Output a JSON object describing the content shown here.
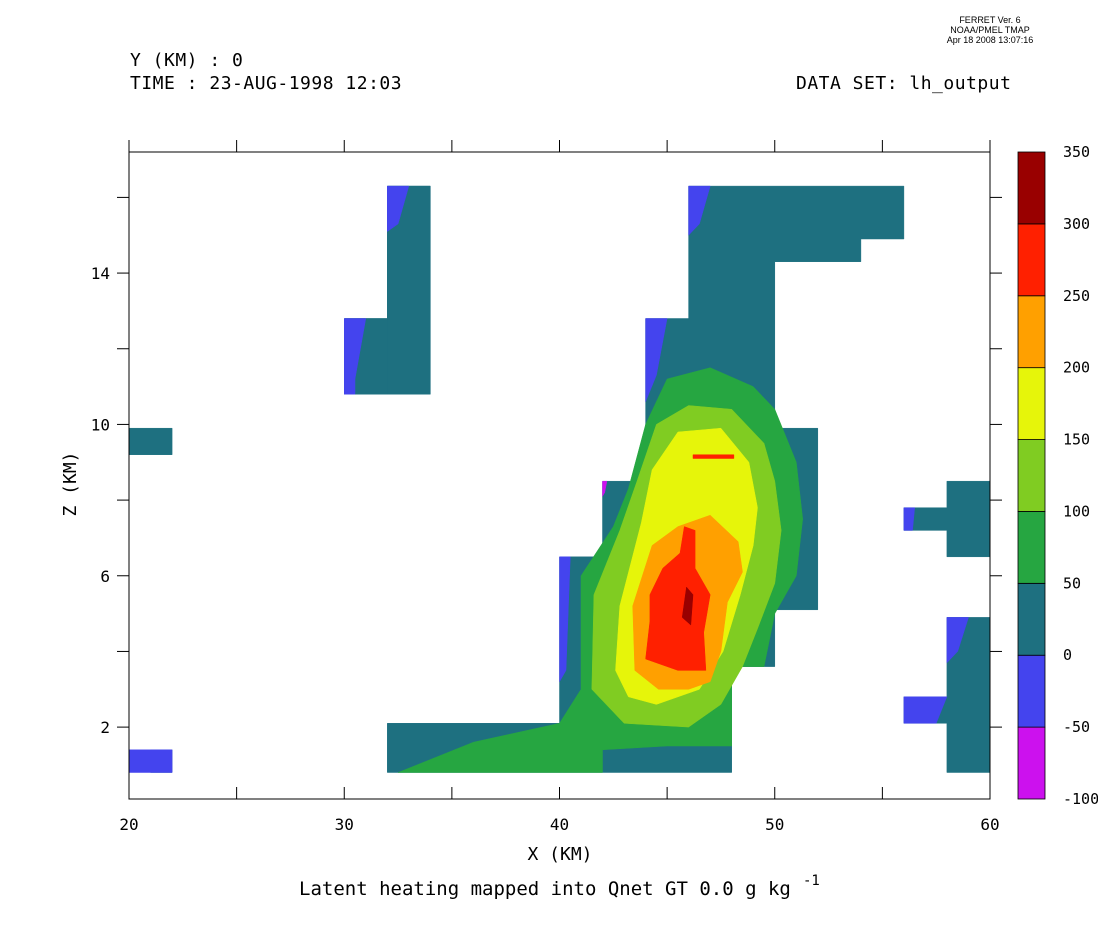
{
  "header": {
    "y_line": "Y (KM) : 0",
    "time_line": "TIME : 23-AUG-1998 12:03",
    "dataset_line": "DATA SET: lh_output"
  },
  "stamp": {
    "line1": "FERRET Ver. 6",
    "line2": "NOAA/PMEL TMAP",
    "line3": "Apr 18 2008 13:07:16"
  },
  "chart_data": {
    "type": "heatmap",
    "title": "Latent heating mapped into Qnet GT 0.0 g kg",
    "title_superscript": "-1",
    "xlabel": "X (KM)",
    "ylabel": "Z (KM)",
    "xlim": [
      20,
      60
    ],
    "ylim": [
      0.1,
      17.2
    ],
    "x_tick_labels": [
      "20",
      "30",
      "40",
      "50",
      "60"
    ],
    "y_tick_labels": [
      "2",
      "6",
      "10",
      "14"
    ],
    "colorbar": {
      "levels": [
        -100,
        -50,
        0,
        50,
        100,
        150,
        200,
        250,
        300,
        350
      ],
      "labels": [
        "-100",
        "-50",
        "0",
        "50",
        "100",
        "150",
        "200",
        "250",
        "300",
        "350"
      ],
      "colors": [
        "#cc11ee",
        "#4444ee",
        "#1e7080",
        "#26a641",
        "#80cc22",
        "#e6f50a",
        "#ffa000",
        "#ff2000",
        "#990000"
      ]
    },
    "filled_regions": [
      {
        "level_index": 2,
        "polygons": [
          [
            [
              21,
              1.4
            ],
            [
              22,
              1.4
            ],
            [
              22,
              0.8
            ],
            [
              21,
              0.8
            ]
          ],
          [
            [
              20,
              9.9
            ],
            [
              22,
              9.9
            ],
            [
              22,
              9.2
            ],
            [
              20,
              9.2
            ]
          ],
          [
            [
              32,
              16.3
            ],
            [
              34,
              16.3
            ],
            [
              34,
              10.8
            ],
            [
              32,
              10.8
            ],
            [
              32,
              12.8
            ],
            [
              30,
              12.8
            ],
            [
              30,
              10.8
            ],
            [
              32,
              10.8
            ]
          ],
          [
            [
              30,
              12.8
            ],
            [
              32,
              12.8
            ],
            [
              32,
              10.8
            ],
            [
              30,
              10.8
            ]
          ],
          [
            [
              32,
              16.3
            ],
            [
              34,
              16.3
            ],
            [
              34,
              10.8
            ],
            [
              32,
              10.8
            ]
          ],
          [
            [
              32,
              2.1
            ],
            [
              40,
              2.1
            ],
            [
              40,
              6.5
            ],
            [
              42,
              6.5
            ],
            [
              42,
              8.5
            ],
            [
              44,
              8.5
            ],
            [
              44,
              12.8
            ],
            [
              46,
              12.8
            ],
            [
              46,
              16.3
            ],
            [
              56,
              16.3
            ],
            [
              56,
              14.9
            ],
            [
              54,
              14.9
            ],
            [
              54,
              14.3
            ],
            [
              50,
              14.3
            ],
            [
              50,
              9.9
            ],
            [
              52,
              9.9
            ],
            [
              52,
              5.1
            ],
            [
              50,
              5.1
            ],
            [
              50,
              3.6
            ],
            [
              48,
              3.6
            ],
            [
              48,
              0.8
            ],
            [
              32,
              0.8
            ]
          ],
          [
            [
              56,
              7.8
            ],
            [
              58,
              7.8
            ],
            [
              58,
              8.5
            ],
            [
              60,
              8.5
            ],
            [
              60,
              6.5
            ],
            [
              58,
              6.5
            ],
            [
              58,
              7.2
            ],
            [
              56,
              7.2
            ]
          ],
          [
            [
              56,
              2.8
            ],
            [
              58,
              2.8
            ],
            [
              58,
              4.9
            ],
            [
              60,
              4.9
            ],
            [
              60,
              0.8
            ],
            [
              58,
              0.8
            ],
            [
              58,
              2.1
            ],
            [
              56,
              2.1
            ]
          ]
        ]
      },
      {
        "level_index": 1,
        "polygons": [
          [
            [
              20,
              1.4
            ],
            [
              22,
              1.4
            ],
            [
              22,
              0.8
            ],
            [
              20,
              0.8
            ]
          ],
          [
            [
              32,
              16.3
            ],
            [
              33,
              16.3
            ],
            [
              32.5,
              15.3
            ],
            [
              32,
              15.1
            ]
          ],
          [
            [
              30,
              12.8
            ],
            [
              31,
              12.8
            ],
            [
              30.5,
              11.2
            ],
            [
              30.5,
              10.8
            ],
            [
              30,
              10.8
            ]
          ],
          [
            [
              44,
              12.8
            ],
            [
              45,
              12.8
            ],
            [
              44.5,
              11.3
            ],
            [
              44,
              10.6
            ]
          ],
          [
            [
              46,
              16.3
            ],
            [
              47,
              16.3
            ],
            [
              46.5,
              15.3
            ],
            [
              46,
              15
            ]
          ],
          [
            [
              40,
              6.5
            ],
            [
              40.5,
              6.5
            ],
            [
              40.3,
              3.5
            ],
            [
              40,
              3.2
            ]
          ],
          [
            [
              56,
              7.8
            ],
            [
              56.5,
              7.8
            ],
            [
              56.4,
              7.2
            ],
            [
              56,
              7.2
            ]
          ],
          [
            [
              58,
              4.9
            ],
            [
              59,
              4.9
            ],
            [
              58.5,
              4
            ],
            [
              58,
              3.7
            ]
          ],
          [
            [
              56,
              2.8
            ],
            [
              58,
              2.8
            ],
            [
              57.5,
              2.1
            ],
            [
              56,
              2.1
            ]
          ]
        ]
      },
      {
        "level_index": 0,
        "polygons": [
          [
            [
              42,
              8.5
            ],
            [
              42.2,
              8.5
            ],
            [
              42.1,
              8.2
            ],
            [
              42,
              8.1
            ]
          ]
        ]
      },
      {
        "level_index": 3,
        "polygons": [
          [
            [
              32.5,
              0.8
            ],
            [
              36,
              1.6
            ],
            [
              40,
              2.1
            ],
            [
              41,
              3
            ],
            [
              41,
              6
            ],
            [
              42.5,
              7.3
            ],
            [
              43.2,
              8.3
            ],
            [
              44,
              10
            ],
            [
              45,
              11.2
            ],
            [
              47,
              11.5
            ],
            [
              49,
              11
            ],
            [
              50,
              10.4
            ],
            [
              51,
              9
            ],
            [
              51.3,
              7.5
            ],
            [
              51,
              6
            ],
            [
              50,
              5
            ],
            [
              49.5,
              3.6
            ],
            [
              48,
              3.6
            ],
            [
              48,
              1.5
            ],
            [
              45,
              1.5
            ],
            [
              42,
              1.4
            ],
            [
              42,
              0.8
            ]
          ]
        ]
      },
      {
        "level_index": 4,
        "polygons": [
          [
            [
              41.5,
              3
            ],
            [
              41.6,
              5.5
            ],
            [
              42.8,
              7.2
            ],
            [
              43.6,
              8.5
            ],
            [
              44.5,
              10
            ],
            [
              46,
              10.5
            ],
            [
              48,
              10.4
            ],
            [
              49.5,
              9.5
            ],
            [
              50,
              8.5
            ],
            [
              50.3,
              7.2
            ],
            [
              50,
              5.8
            ],
            [
              49.2,
              4.6
            ],
            [
              48.5,
              3.6
            ],
            [
              47.5,
              2.6
            ],
            [
              46,
              2
            ],
            [
              43,
              2.1
            ]
          ]
        ]
      },
      {
        "level_index": 5,
        "polygons": [
          [
            [
              42.6,
              3.5
            ],
            [
              42.8,
              5.2
            ],
            [
              43.8,
              7.4
            ],
            [
              44.3,
              8.8
            ],
            [
              45.5,
              9.8
            ],
            [
              47.5,
              9.9
            ],
            [
              48.8,
              9
            ],
            [
              49.2,
              7.8
            ],
            [
              49,
              6.8
            ],
            [
              48.4,
              5.5
            ],
            [
              47.6,
              4
            ],
            [
              46.5,
              3
            ],
            [
              44.5,
              2.6
            ],
            [
              43.2,
              2.8
            ]
          ]
        ]
      },
      {
        "level_index": 6,
        "polygons": [
          [
            [
              43.5,
              3.5
            ],
            [
              43.4,
              5.2
            ],
            [
              44.3,
              6.8
            ],
            [
              45.5,
              7.3
            ],
            [
              47,
              7.6
            ],
            [
              48.3,
              6.9
            ],
            [
              48.5,
              6.1
            ],
            [
              47.8,
              5.3
            ],
            [
              47.5,
              4
            ],
            [
              47,
              3.2
            ],
            [
              46,
              3
            ],
            [
              44.6,
              3
            ]
          ]
        ]
      },
      {
        "level_index": 7,
        "polygons": [
          [
            [
              44,
              3.8
            ],
            [
              44.2,
              4.8
            ],
            [
              44.2,
              5.5
            ],
            [
              44.8,
              6.2
            ],
            [
              45.6,
              6.6
            ],
            [
              45.8,
              7.3
            ],
            [
              46.3,
              7.2
            ],
            [
              46.3,
              6.2
            ],
            [
              47,
              5.5
            ],
            [
              46.7,
              4.5
            ],
            [
              46.8,
              3.5
            ],
            [
              45.5,
              3.5
            ]
          ],
          [
            [
              46.2,
              9.2
            ],
            [
              48.1,
              9.2
            ],
            [
              48.1,
              9.1
            ],
            [
              46.2,
              9.1
            ]
          ]
        ]
      },
      {
        "level_index": 8,
        "polygons": [
          [
            [
              45.7,
              4.9
            ],
            [
              45.9,
              5.7
            ],
            [
              46.2,
              5.5
            ],
            [
              46.1,
              4.7
            ]
          ]
        ]
      }
    ]
  }
}
